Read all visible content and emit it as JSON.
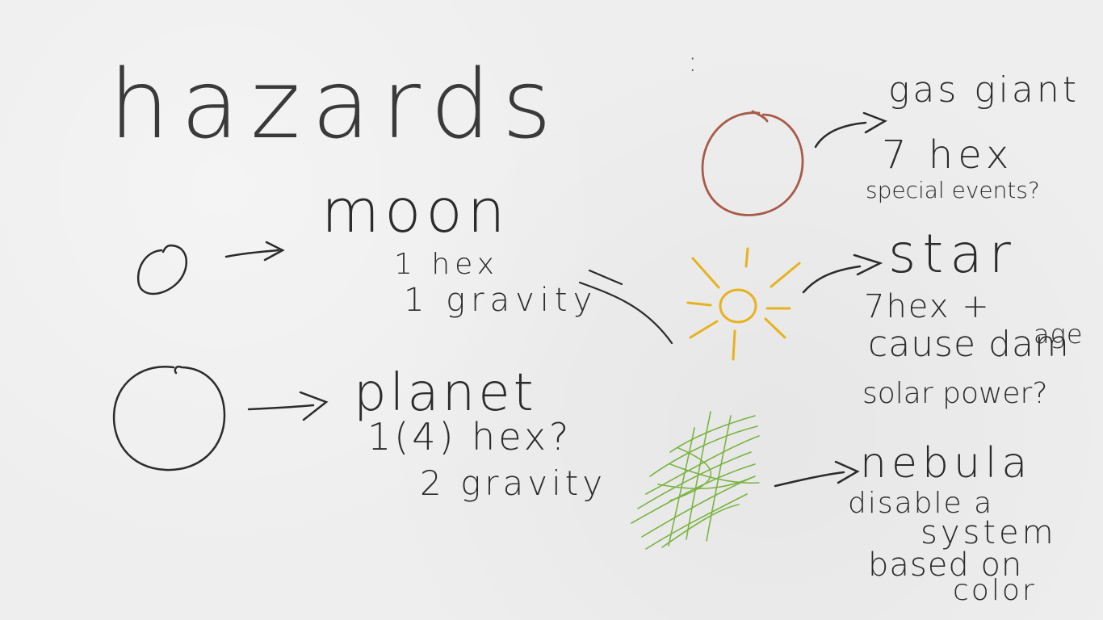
{
  "title": "hazards",
  "title_colon": ":",
  "colors": {
    "ink": "#2b2b2b",
    "gas_giant": "#a85a48",
    "star": "#e8b21e",
    "nebula": "#6fae2e",
    "paper": "#eeeeee"
  },
  "hazards": {
    "moon": {
      "name": "moon",
      "hex": "1 hex",
      "gravity": "1 gravity"
    },
    "planet": {
      "name": "planet",
      "hex": "1(4) hex?",
      "gravity": "2 gravity"
    },
    "gas_giant": {
      "name": "gas giant",
      "hex": "7 hex",
      "note": "special events?"
    },
    "star": {
      "name": "star",
      "hex": "7hex +",
      "note_1": "cause dam",
      "note_1b": "age",
      "note_2": "solar power?"
    },
    "nebula": {
      "name": "nebula",
      "note_1": "disable a",
      "note_2": "system",
      "note_3": "based on",
      "note_4": "color"
    }
  },
  "icons": [
    "moon-icon",
    "planet-icon",
    "gas-giant-icon",
    "star-icon",
    "nebula-icon",
    "arrow-icon"
  ]
}
